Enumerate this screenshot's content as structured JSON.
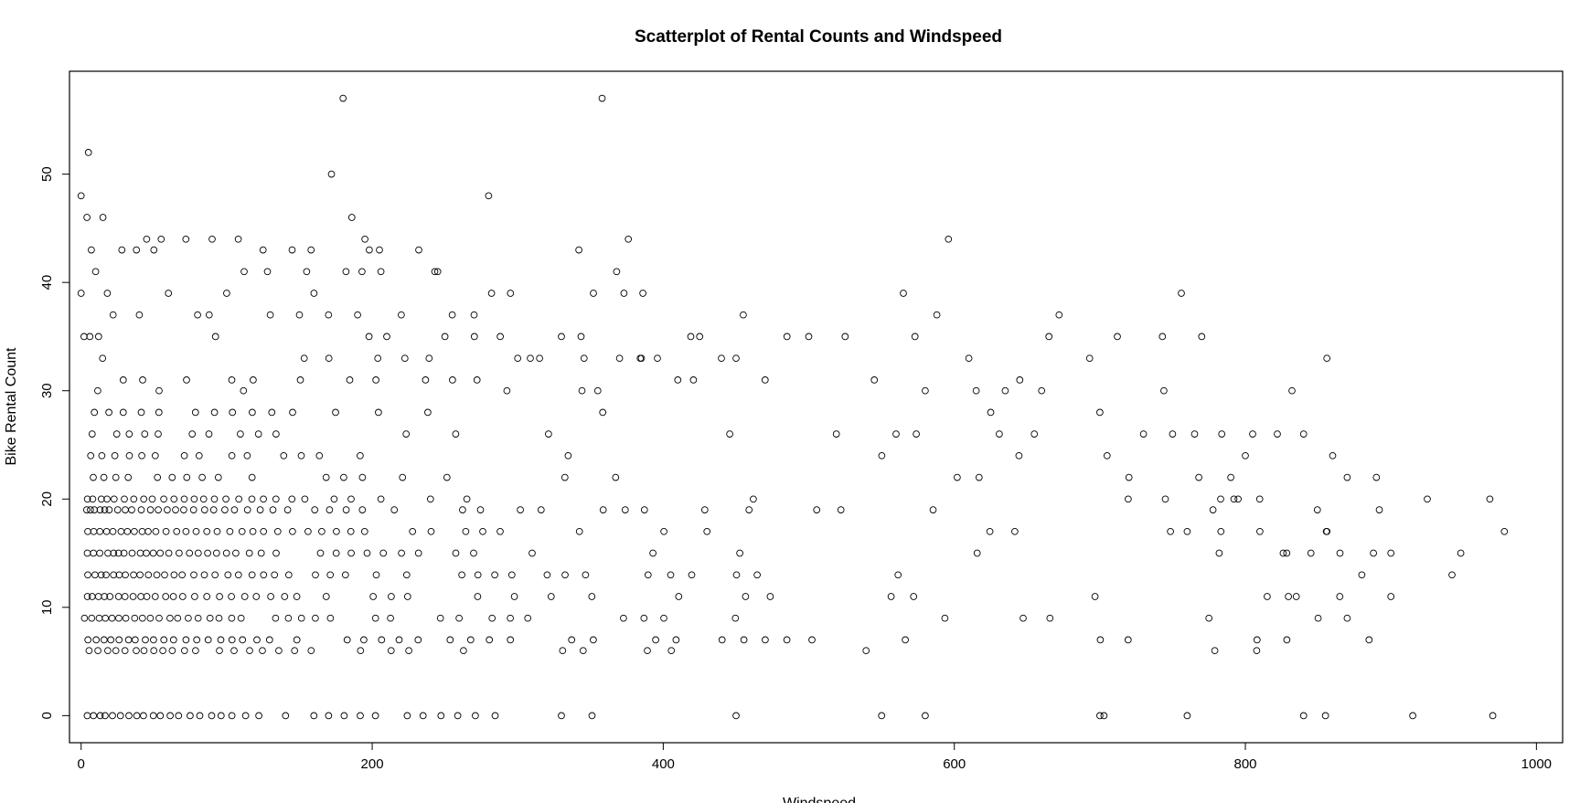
{
  "chart_data": {
    "type": "scatter",
    "title": "Scatterplot of Rental Counts and Windspeed",
    "xlabel": "Windspeed",
    "ylabel": "Bike Rental Count",
    "xlim": [
      -8,
      1018
    ],
    "ylim": [
      -2.5,
      59.5
    ],
    "xticks": [
      0,
      200,
      400,
      600,
      800,
      1000
    ],
    "yticks": [
      0,
      10,
      20,
      30,
      40,
      50
    ],
    "grid": false,
    "legend": "none",
    "marker_color": "#000000",
    "band_levels": [
      0,
      6,
      7,
      9,
      11,
      13,
      15,
      17,
      19,
      20,
      22,
      24,
      26,
      28,
      30,
      31,
      33,
      35
    ],
    "points": [
      [
        0,
        48
      ],
      [
        5,
        52
      ],
      [
        4,
        46
      ],
      [
        7,
        43
      ],
      [
        10,
        41
      ],
      [
        0,
        39
      ],
      [
        15,
        46
      ],
      [
        18,
        39
      ],
      [
        45,
        44
      ],
      [
        50,
        43
      ],
      [
        55,
        44
      ],
      [
        28,
        43
      ],
      [
        38,
        43
      ],
      [
        72,
        44
      ],
      [
        90,
        44
      ],
      [
        108,
        44
      ],
      [
        112,
        41
      ],
      [
        125,
        43
      ],
      [
        128,
        41
      ],
      [
        145,
        43
      ],
      [
        158,
        43
      ],
      [
        155,
        41
      ],
      [
        160,
        39
      ],
      [
        172,
        50
      ],
      [
        180,
        57
      ],
      [
        186,
        46
      ],
      [
        182,
        41
      ],
      [
        195,
        44
      ],
      [
        193,
        41
      ],
      [
        198,
        43
      ],
      [
        205,
        43
      ],
      [
        206,
        41
      ],
      [
        232,
        43
      ],
      [
        243,
        41
      ],
      [
        245,
        41
      ],
      [
        280,
        48
      ],
      [
        282,
        39
      ],
      [
        295,
        39
      ],
      [
        342,
        43
      ],
      [
        352,
        39
      ],
      [
        358,
        57
      ],
      [
        368,
        41
      ],
      [
        373,
        39
      ],
      [
        376,
        44
      ],
      [
        386,
        39
      ],
      [
        565,
        39
      ],
      [
        588,
        37
      ],
      [
        596,
        44
      ],
      [
        610,
        33
      ],
      [
        672,
        37
      ],
      [
        693,
        33
      ],
      [
        743,
        35
      ],
      [
        744,
        30
      ],
      [
        756,
        39
      ],
      [
        770,
        35
      ],
      [
        832,
        30
      ],
      [
        856,
        33
      ],
      [
        925,
        20
      ],
      [
        968,
        20
      ],
      [
        978,
        17
      ],
      [
        942,
        13
      ],
      [
        948,
        15
      ],
      [
        915,
        0
      ],
      [
        970,
        0
      ],
      [
        900,
        15
      ],
      [
        900,
        11
      ],
      [
        890,
        22
      ],
      [
        892,
        19
      ],
      [
        888,
        15
      ],
      [
        885,
        7
      ],
      [
        880,
        13
      ],
      [
        870,
        9
      ],
      [
        860,
        24
      ],
      [
        856,
        17
      ],
      [
        865,
        15
      ],
      [
        870,
        22
      ],
      [
        840,
        26
      ],
      [
        822,
        26
      ],
      [
        805,
        26
      ],
      [
        800,
        24
      ],
      [
        795,
        20
      ],
      [
        790,
        22
      ],
      [
        783,
        20
      ],
      [
        782,
        15
      ],
      [
        779,
        6
      ],
      [
        775,
        9
      ],
      [
        768,
        22
      ],
      [
        760,
        17
      ],
      [
        750,
        26
      ],
      [
        745,
        20
      ],
      [
        730,
        26
      ],
      [
        720,
        22
      ],
      [
        712,
        35
      ],
      [
        705,
        24
      ],
      [
        700,
        28
      ],
      [
        665,
        35
      ],
      [
        660,
        30
      ],
      [
        655,
        26
      ],
      [
        645,
        31
      ],
      [
        635,
        30
      ],
      [
        625,
        28
      ],
      [
        615,
        30
      ],
      [
        602,
        22
      ],
      [
        580,
        30
      ],
      [
        573,
        35
      ],
      [
        560,
        26
      ],
      [
        545,
        31
      ],
      [
        525,
        35
      ],
      [
        500,
        35
      ],
      [
        485,
        35
      ],
      [
        470,
        31
      ],
      [
        455,
        37
      ],
      [
        450,
        33
      ],
      [
        440,
        33
      ],
      [
        425,
        35
      ],
      [
        410,
        31
      ],
      [
        396,
        33
      ],
      [
        385,
        33
      ],
      [
        370,
        33
      ],
      [
        355,
        30
      ],
      [
        330,
        35
      ],
      [
        315,
        33
      ],
      [
        300,
        33
      ],
      [
        288,
        35
      ],
      [
        270,
        37
      ],
      [
        255,
        37
      ],
      [
        250,
        35
      ],
      [
        220,
        37
      ],
      [
        210,
        35
      ],
      [
        190,
        37
      ],
      [
        170,
        37
      ],
      [
        150,
        37
      ],
      [
        130,
        37
      ],
      [
        100,
        39
      ],
      [
        88,
        37
      ],
      [
        80,
        37
      ],
      [
        60,
        39
      ],
      [
        40,
        37
      ],
      [
        22,
        37
      ],
      [
        12,
        35
      ],
      [
        2,
        35
      ],
      [
        6,
        35
      ],
      [
        330,
        0
      ],
      [
        450,
        0
      ],
      [
        580,
        0
      ],
      [
        700,
        0
      ],
      [
        760,
        0
      ],
      [
        840,
        0
      ],
      [
        855,
        0
      ],
      [
        810,
        17
      ],
      [
        815,
        11
      ],
      [
        808,
        7
      ],
      [
        826,
        15
      ],
      [
        835,
        11
      ],
      [
        845,
        15
      ],
      [
        850,
        9
      ]
    ]
  }
}
